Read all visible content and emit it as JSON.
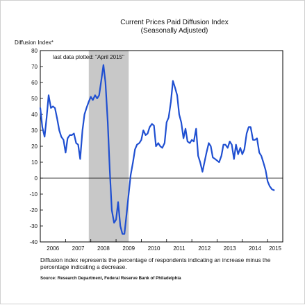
{
  "chart_data": {
    "type": "line",
    "title": "Current Prices Paid Diffusion Index",
    "subtitle": "(Seasonally Adjusted)",
    "ylabel": "Diffusion Index*",
    "xlabel": "",
    "ylim": [
      -40,
      80
    ],
    "yticks": [
      -40,
      -30,
      -20,
      -10,
      0,
      10,
      20,
      30,
      40,
      50,
      60,
      70,
      80
    ],
    "xlim": [
      2006.0,
      2015.6
    ],
    "xtick_labels": [
      "2006",
      "2007",
      "2008",
      "2009",
      "2010",
      "2011",
      "2012",
      "2013",
      "2014",
      "2015"
    ],
    "annotation": "last data plotted: \"April 2015\"",
    "recession_shading": {
      "start": 2007.92,
      "end": 2009.5
    },
    "zero_line": true,
    "grid": false,
    "line_color": "#1f4fd1",
    "recession_color": "#c8c8c8",
    "series": [
      {
        "x": [
          2006.0,
          2006.08,
          2006.17,
          2006.25,
          2006.33,
          2006.42,
          2006.5,
          2006.58,
          2006.67,
          2006.75,
          2006.83,
          2006.92,
          2007.0,
          2007.08,
          2007.17,
          2007.25,
          2007.33,
          2007.42,
          2007.5,
          2007.58,
          2007.67,
          2007.75,
          2007.83,
          2007.92,
          2008.0,
          2008.08,
          2008.17,
          2008.25,
          2008.33,
          2008.42,
          2008.5,
          2008.58,
          2008.67,
          2008.75,
          2008.83,
          2008.92,
          2009.0,
          2009.08,
          2009.17,
          2009.25,
          2009.33,
          2009.42,
          2009.5,
          2009.58,
          2009.67,
          2009.75,
          2009.83,
          2009.92,
          2010.0,
          2010.08,
          2010.17,
          2010.25,
          2010.33,
          2010.42,
          2010.5,
          2010.58,
          2010.67,
          2010.75,
          2010.83,
          2010.92,
          2011.0,
          2011.08,
          2011.17,
          2011.25,
          2011.33,
          2011.42,
          2011.5,
          2011.58,
          2011.67,
          2011.75,
          2011.83,
          2011.92,
          2012.0,
          2012.08,
          2012.17,
          2012.25,
          2012.33,
          2012.42,
          2012.5,
          2012.58,
          2012.67,
          2012.75,
          2012.83,
          2012.92,
          2013.0,
          2013.08,
          2013.17,
          2013.25,
          2013.33,
          2013.42,
          2013.5,
          2013.58,
          2013.67,
          2013.75,
          2013.83,
          2013.92,
          2014.0,
          2014.08,
          2014.17,
          2014.25,
          2014.33,
          2014.42,
          2014.5,
          2014.58,
          2014.67,
          2014.75,
          2014.83,
          2014.92,
          2015.0,
          2015.08,
          2015.17,
          2015.25
        ],
        "y": [
          44,
          32,
          26,
          38,
          52,
          44,
          45,
          44,
          37,
          30,
          26,
          24,
          16,
          25,
          27,
          27,
          28,
          22,
          21,
          12,
          30,
          40,
          44,
          48,
          51,
          49,
          52,
          50,
          52,
          62,
          71,
          60,
          35,
          5,
          -20,
          -28,
          -26,
          -15,
          -30,
          -35,
          -35,
          -22,
          -10,
          2,
          10,
          18,
          21,
          22,
          24,
          30,
          27,
          28,
          32,
          34,
          33,
          20,
          22,
          20,
          19,
          22,
          35,
          38,
          48,
          61,
          57,
          52,
          40,
          35,
          25,
          31,
          23,
          22,
          24,
          23,
          31,
          14,
          10,
          4,
          10,
          16,
          22,
          20,
          13,
          12,
          11,
          10,
          14,
          21,
          21,
          19,
          23,
          21,
          12,
          21,
          15,
          19,
          15,
          18,
          28,
          32,
          32,
          24,
          24,
          25,
          16,
          14,
          10,
          5,
          -2,
          -5,
          -7,
          -7.5
        ]
      }
    ]
  },
  "footnote": "Diffusion index represents the percentage of respondents indicating an increase minus the percentage indicating a decrease.",
  "source": "Source: Research Department, Federal Reserve Bank of Philadelphia"
}
